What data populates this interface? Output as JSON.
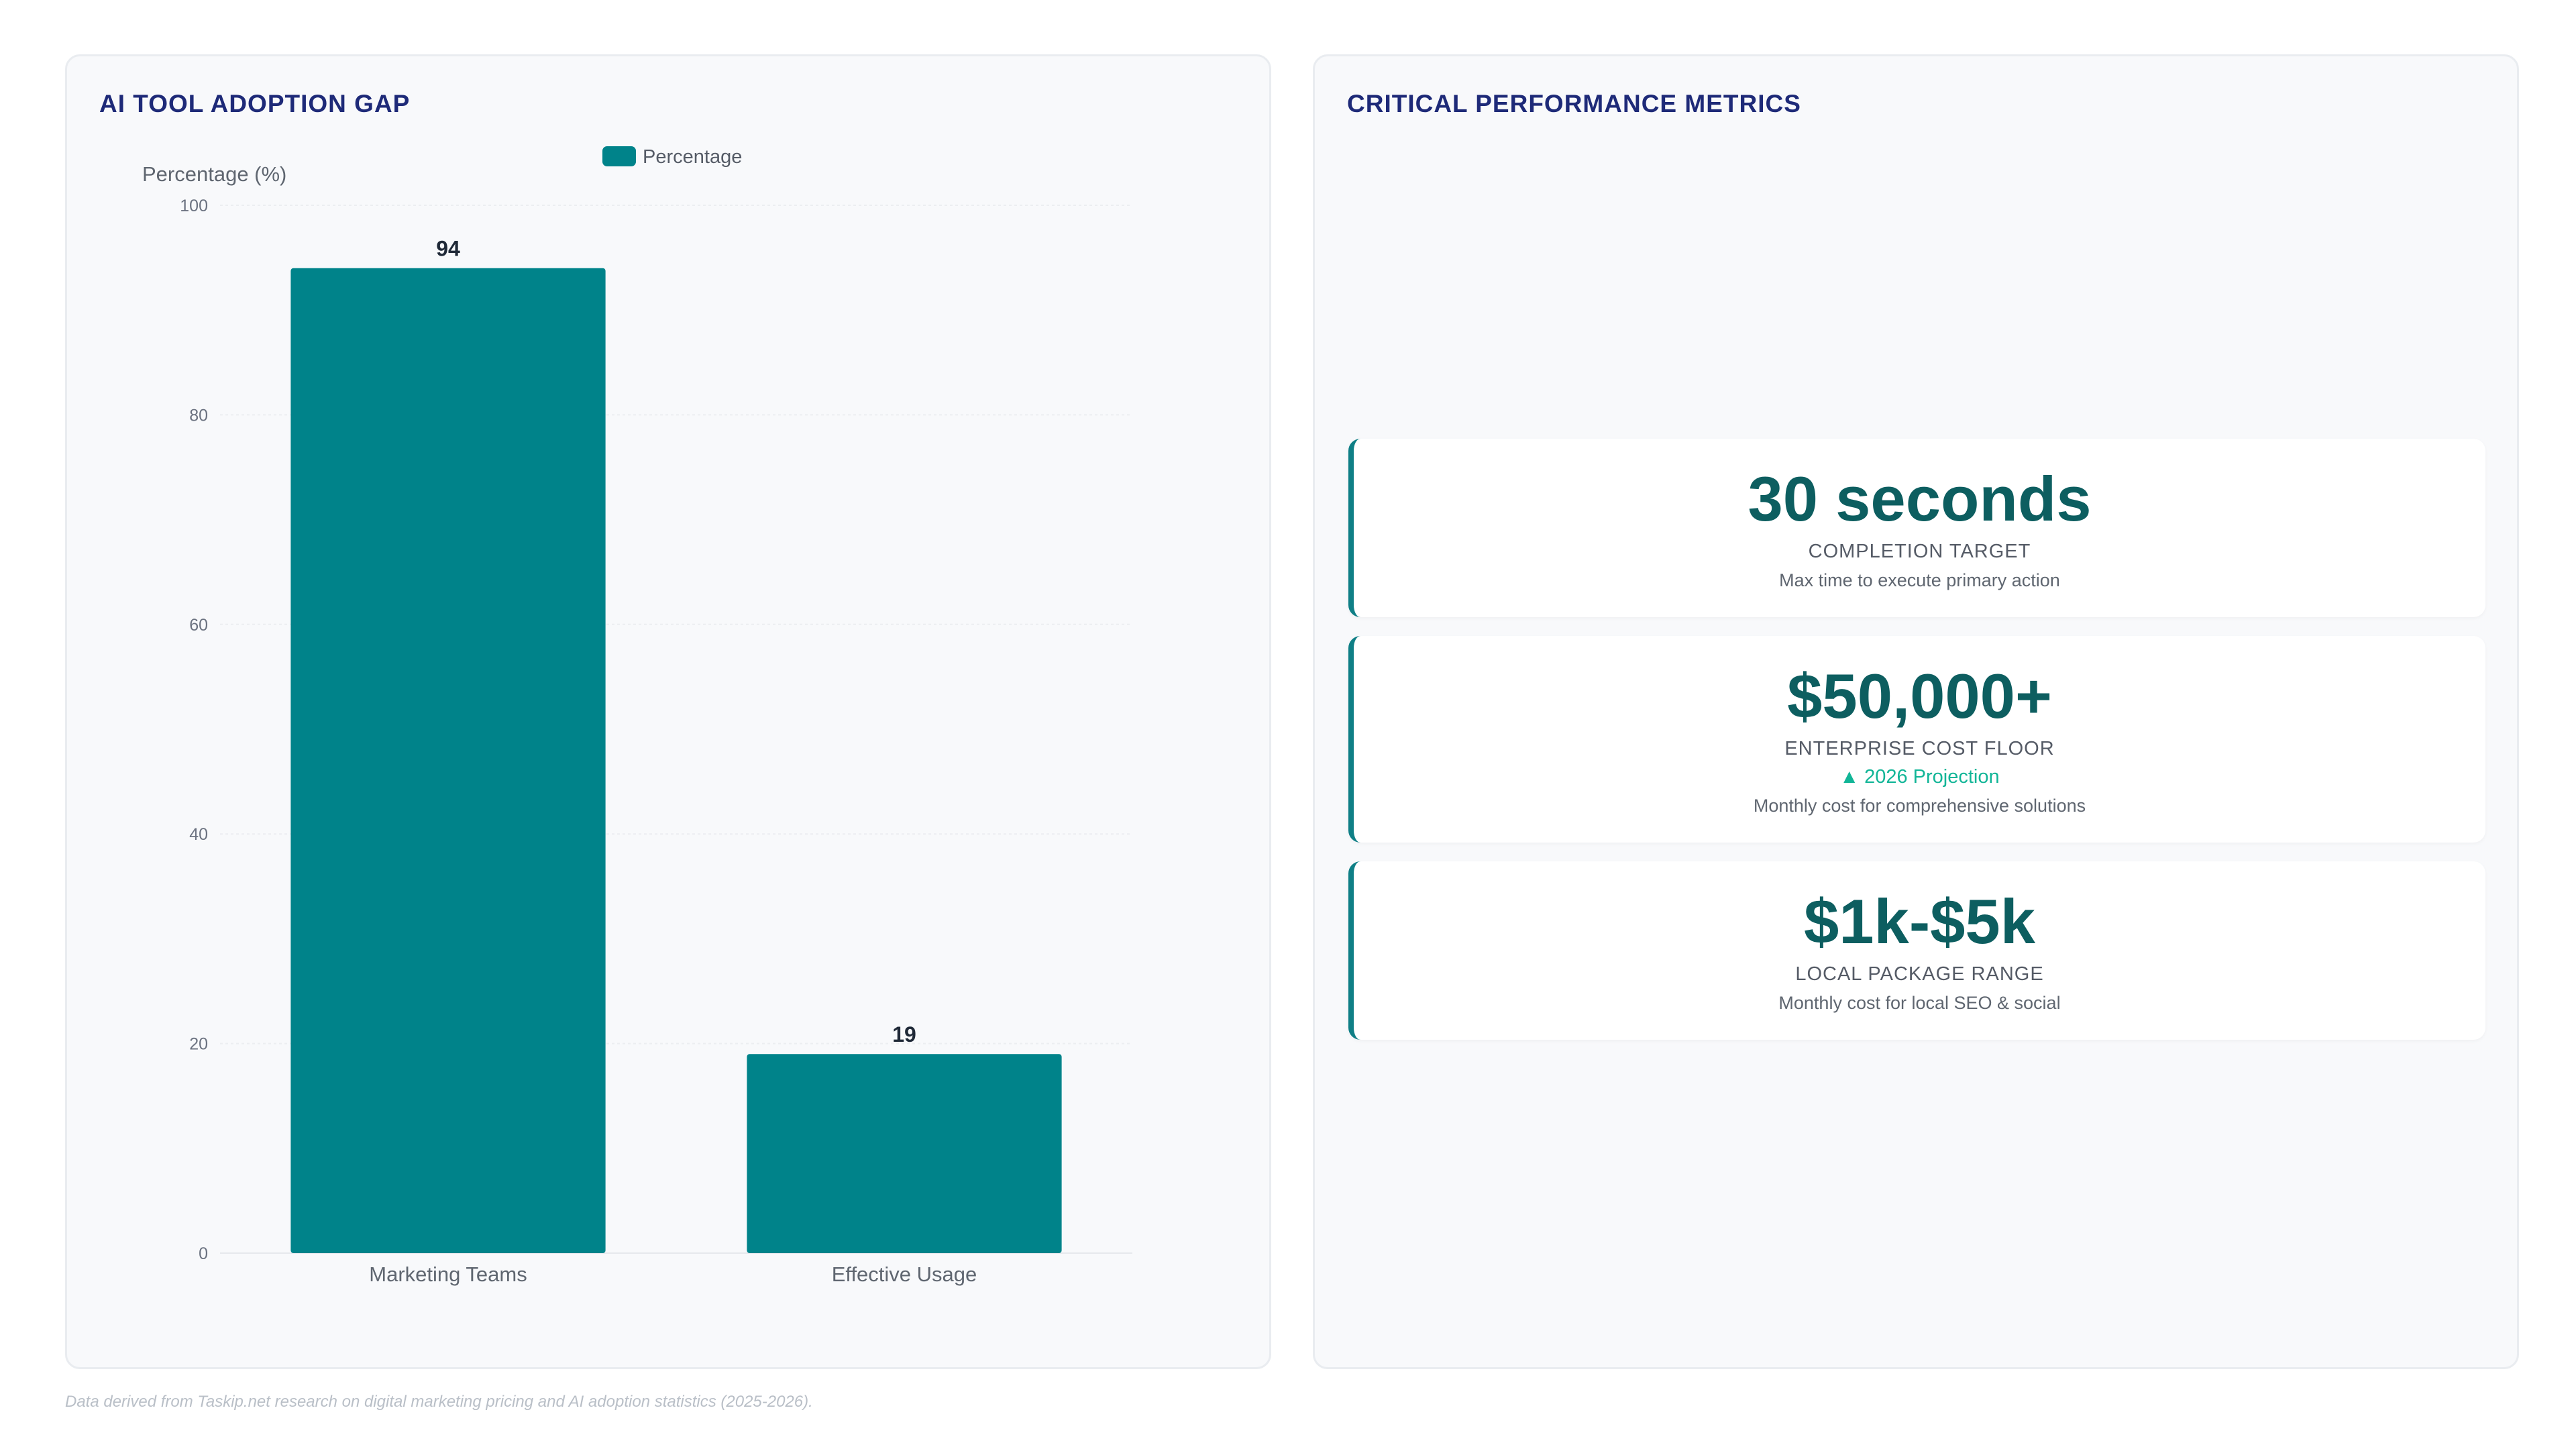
{
  "left_panel": {
    "title": "AI TOOL ADOPTION GAP"
  },
  "right_panel": {
    "title": "CRITICAL PERFORMANCE METRICS",
    "metrics": [
      {
        "value": "30 seconds",
        "label": "COMPLETION TARGET",
        "trend": "",
        "description": "Max time to execute primary action"
      },
      {
        "value": "$50,000+",
        "label": "ENTERPRISE COST FLOOR",
        "trend": "▲ 2026 Projection",
        "description": "Monthly cost for comprehensive solutions"
      },
      {
        "value": "$1k-$5k",
        "label": "LOCAL PACKAGE RANGE",
        "trend": "",
        "description": "Monthly cost for local SEO & social"
      }
    ]
  },
  "footnote": "Data derived from Taskip.net research on digital marketing pricing and AI adoption statistics (2025-2026).",
  "colors": {
    "bar": "#00838a",
    "title": "#1e2a78",
    "metric_value": "#0d5e60",
    "trend": "#11b597"
  },
  "chart_data": {
    "type": "bar",
    "categories": [
      "Marketing Teams",
      "Effective Usage"
    ],
    "series": [
      {
        "name": "Percentage",
        "values": [
          94,
          19
        ]
      }
    ],
    "title": "AI TOOL ADOPTION GAP",
    "xlabel": "",
    "ylabel": "Percentage (%)",
    "ylim": [
      0,
      100
    ],
    "yticks": [
      0,
      20,
      40,
      60,
      80,
      100
    ],
    "grid": true,
    "legend": "top-center",
    "data_labels": true
  }
}
